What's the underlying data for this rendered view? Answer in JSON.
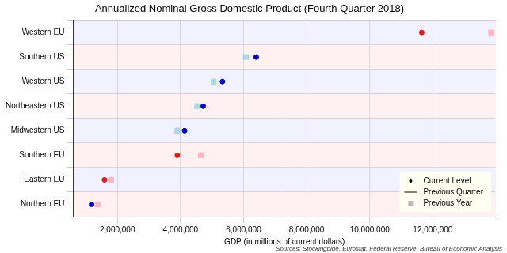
{
  "chart_data": {
    "type": "scatter",
    "title": "Annualized Nominal Gross Domestic Product (Fourth Quarter 2018)",
    "x_label": "GDP (in millions of current dollars)",
    "source": "Sources: Stockingblue, Eurostat, Federal Reserve, Bureau of Economic Analysis",
    "categories": [
      "Western EU",
      "Southern US",
      "Western US",
      "Northeastern US",
      "Midwestern US",
      "Southern EU",
      "Eastern EU",
      "Northern EU"
    ],
    "series": [
      {
        "name": "Current Level",
        "marker": "circle",
        "colors": [
          "#e41a1c",
          "#0000cd",
          "#0000cd",
          "#0000cd",
          "#0000cd",
          "#e41a1c",
          "#e41a1c",
          "#0000cd"
        ],
        "values": [
          11650000,
          6400000,
          5330000,
          4720000,
          4130000,
          3900000,
          1590000,
          1180000
        ]
      },
      {
        "name": "Previous Quarter",
        "marker": "line",
        "color": "#000000",
        "values": [
          null,
          null,
          null,
          null,
          null,
          null,
          null,
          null
        ]
      },
      {
        "name": "Previous Year",
        "marker": "square",
        "colors": [
          "#ffb6c1",
          "#add8e6",
          "#add8e6",
          "#add8e6",
          "#add8e6",
          "#ffb6c1",
          "#ffb6c1",
          "#ffb6c1"
        ],
        "values": [
          13850000,
          6070000,
          5050000,
          4530000,
          3900000,
          4650000,
          1800000,
          1380000
        ]
      }
    ],
    "xlim": [
      600000,
      14000000
    ],
    "xticks": [
      {
        "value": 2000000,
        "label": "2,000,000"
      },
      {
        "value": 4000000,
        "label": "4,000,000"
      },
      {
        "value": 6000000,
        "label": "6,000,000"
      },
      {
        "value": 8000000,
        "label": "8,000,000"
      },
      {
        "value": 10000000,
        "label": "10,000,000"
      },
      {
        "value": 12000000,
        "label": "12,000,000"
      }
    ],
    "grid": true,
    "legend": "lower right"
  }
}
